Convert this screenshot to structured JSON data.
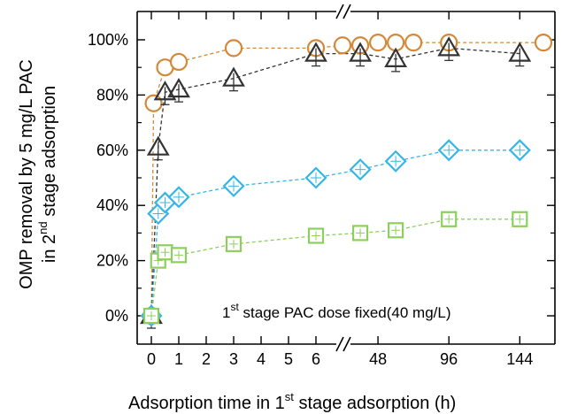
{
  "chart_data": {
    "type": "scatter",
    "xlabel_parts": [
      "Adsorption time in 1",
      "st",
      " stage adsorption (h)"
    ],
    "ylabel_line1": "OMP removal by 5 mg/L PAC",
    "ylabel_line2_parts": [
      "in 2",
      "nd",
      " stage adsorption"
    ],
    "annotation_parts": [
      "1",
      "st",
      " stage PAC dose fixed(40 mg/L)"
    ],
    "x_break_after": 6,
    "x_ticks": [
      "0",
      "1",
      "2",
      "3",
      "4",
      "5",
      "6",
      "48",
      "96",
      "144"
    ],
    "y_ticks": [
      "0%",
      "20%",
      "40%",
      "60%",
      "80%",
      "100%"
    ],
    "ylim": [
      0,
      100
    ],
    "series": [
      {
        "marker": "circle",
        "color": "#D4893A",
        "points": [
          {
            "x": 0,
            "y": 0
          },
          {
            "x": 0.083,
            "y": 77
          },
          {
            "x": 0.5,
            "y": 90
          },
          {
            "x": 1,
            "y": 92
          },
          {
            "x": 3,
            "y": 97
          },
          {
            "x": 6,
            "y": 97
          },
          {
            "x": 24,
            "y": 98
          },
          {
            "x": 36,
            "y": 98
          },
          {
            "x": 48,
            "y": 99
          },
          {
            "x": 60,
            "y": 99
          },
          {
            "x": 72,
            "y": 99
          },
          {
            "x": 96,
            "y": 99
          },
          {
            "x": 160,
            "y": 99
          }
        ]
      },
      {
        "marker": "triangle",
        "color": "#333333",
        "points": [
          {
            "x": 0,
            "y": 0
          },
          {
            "x": 0.25,
            "y": 61
          },
          {
            "x": 0.5,
            "y": 81
          },
          {
            "x": 1,
            "y": 82
          },
          {
            "x": 3,
            "y": 86
          },
          {
            "x": 6,
            "y": 95
          },
          {
            "x": 36,
            "y": 95
          },
          {
            "x": 60,
            "y": 93
          },
          {
            "x": 96,
            "y": 97
          },
          {
            "x": 144,
            "y": 95
          }
        ]
      },
      {
        "marker": "diamond",
        "color": "#35B6E6",
        "points": [
          {
            "x": 0,
            "y": 0
          },
          {
            "x": 0.25,
            "y": 37
          },
          {
            "x": 0.5,
            "y": 41
          },
          {
            "x": 1,
            "y": 43
          },
          {
            "x": 3,
            "y": 47
          },
          {
            "x": 6,
            "y": 50
          },
          {
            "x": 36,
            "y": 53
          },
          {
            "x": 60,
            "y": 56
          },
          {
            "x": 96,
            "y": 60
          },
          {
            "x": 144,
            "y": 60
          }
        ]
      },
      {
        "marker": "square",
        "color": "#8DCF5E",
        "points": [
          {
            "x": 0,
            "y": 0
          },
          {
            "x": 0.25,
            "y": 20
          },
          {
            "x": 0.5,
            "y": 23
          },
          {
            "x": 1,
            "y": 22
          },
          {
            "x": 3,
            "y": 26
          },
          {
            "x": 6,
            "y": 29
          },
          {
            "x": 36,
            "y": 30
          },
          {
            "x": 60,
            "y": 31
          },
          {
            "x": 96,
            "y": 35
          },
          {
            "x": 144,
            "y": 35
          }
        ]
      }
    ]
  }
}
